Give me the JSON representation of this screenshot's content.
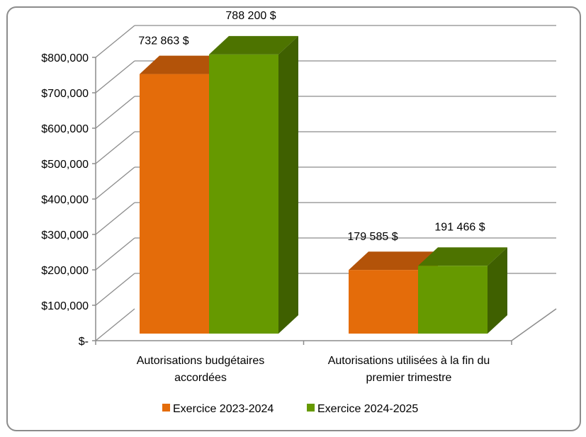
{
  "chart_data": {
    "type": "bar",
    "title": "",
    "xlabel": "",
    "ylabel": "",
    "categories": [
      [
        "Autorisations budgétaires",
        "accordées"
      ],
      [
        "Autorisations utilisées à la fin du",
        "premier trimestre"
      ]
    ],
    "series": [
      {
        "name": "Exercice 2023-2024",
        "values": [
          732863,
          179585
        ],
        "labels": [
          "732 863 $",
          "179 585 $"
        ],
        "color": "#e46c0a",
        "top_color": "#b35309"
      },
      {
        "name": "Exercice 2024-2025",
        "values": [
          788200,
          191466
        ],
        "labels": [
          "788 200 $",
          "191 466 $"
        ],
        "color": "#669900",
        "top_color": "#4d7300",
        "side_color": "#3f6000"
      }
    ],
    "ylim": [
      0,
      800000
    ],
    "yticks": [
      0,
      100000,
      200000,
      300000,
      400000,
      500000,
      600000,
      700000,
      800000
    ],
    "ytick_labels": [
      "$-",
      "$100,000",
      "$200,000",
      "$300,000",
      "$400,000",
      "$500,000",
      "$600,000",
      "$700,000",
      "$800,000"
    ],
    "grid": true,
    "legend": "bottom"
  }
}
